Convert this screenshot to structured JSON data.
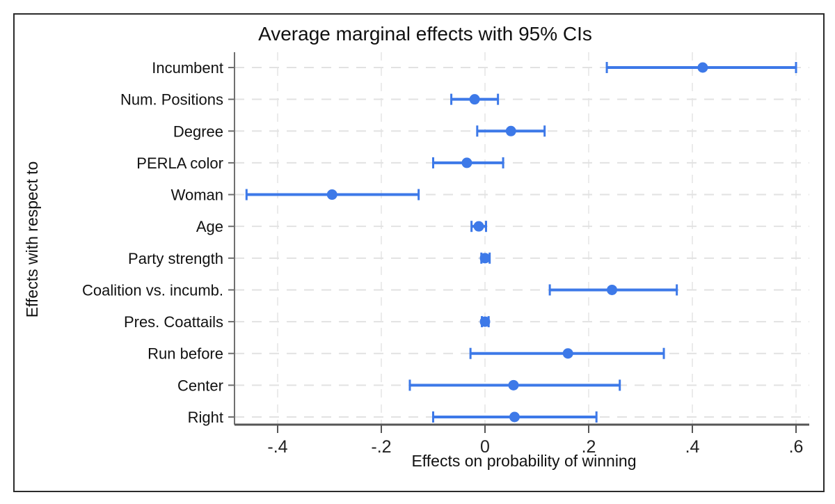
{
  "figure": {
    "title": "Average marginal effects with 95% CIs",
    "x_axis_label": "Effects on probability of winning",
    "y_axis_label": "Effects with respect to",
    "ci_level": "95%"
  },
  "chart_data": {
    "type": "scatter",
    "subtype": "dot-with-95ci-horizontal",
    "title": "Average marginal effects with 95% CIs",
    "xlabel": "Effects on probability of winning",
    "ylabel": "Effects with respect to",
    "legend": "none",
    "grid": "dashed-both-axes",
    "categories": [
      "Incumbent",
      "Num. Positions",
      "Degree",
      "PERLA color",
      "Woman",
      "Age",
      "Party strength",
      "Coalition vs. incumb.",
      "Pres. Coattails",
      "Run before",
      "Center",
      "Right"
    ],
    "estimates": [
      0.42,
      -0.02,
      0.05,
      -0.035,
      -0.295,
      -0.012,
      0.0,
      0.245,
      0.0,
      0.16,
      0.055,
      0.057
    ],
    "ci_low": [
      0.235,
      -0.065,
      -0.015,
      -0.1,
      -0.46,
      -0.026,
      -0.007,
      0.125,
      -0.006,
      -0.028,
      -0.145,
      -0.1
    ],
    "ci_high": [
      0.6,
      0.025,
      0.115,
      0.035,
      -0.128,
      0.002,
      0.009,
      0.37,
      0.007,
      0.345,
      0.26,
      0.215
    ],
    "x_ticks": {
      "values": [
        -0.4,
        -0.2,
        0,
        0.2,
        0.4,
        0.6
      ],
      "labels": [
        "-.4",
        "-.2",
        "0",
        ".2",
        ".4",
        ".6"
      ]
    },
    "xlim": [
      -0.483,
      0.625
    ]
  },
  "colors": {
    "marker": "#3d79e8",
    "ci_line": "#3d79e8",
    "grid_h": "#e2e2e2",
    "grid_v": "#ebebeb",
    "axis_left": "#6f6f6f",
    "axis_bottom": "#555555",
    "text": "#111111",
    "frame_border": "#2b2b2b",
    "background": "#ffffff"
  }
}
